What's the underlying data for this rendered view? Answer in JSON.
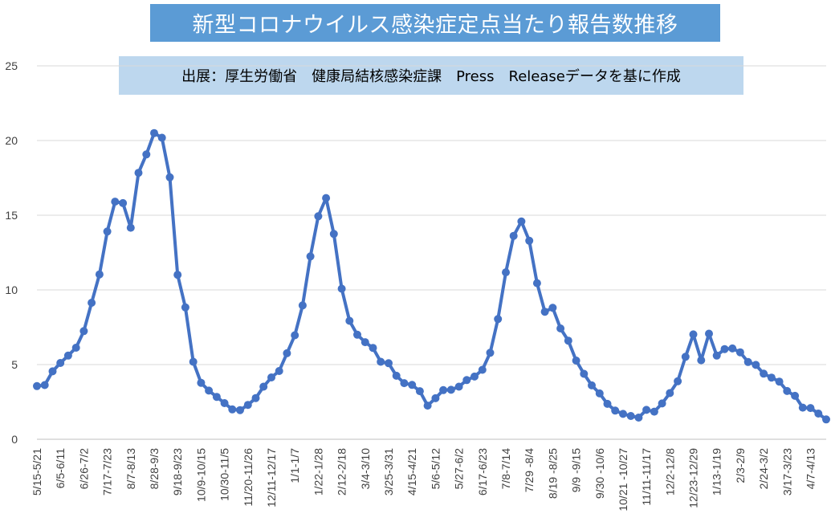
{
  "title": "新型コロナウイルス感染症定点当たり報告数推移",
  "source": "出展：厚生労働省　健康局結核感染症課　Press　Releaseデータを基に作成",
  "colors": {
    "line": "#4472c4",
    "title_bg": "#5b9bd5",
    "source_bg": "#bdd7ee",
    "grid": "#d9d9d9"
  },
  "chart_data": {
    "type": "line",
    "title": "新型コロナウイルス感染症定点当たり報告数推移",
    "xlabel": "",
    "ylabel": "",
    "ylim": [
      0,
      25
    ],
    "yticks": [
      0,
      5,
      10,
      15,
      20,
      25
    ],
    "grid": true,
    "legend": "none",
    "x_tick_labels": [
      "5/15-5/21",
      "6/5-6/11",
      "6/26-7/2",
      "7/17-7/23",
      "8/7-8/13",
      "8/28-9/3",
      "9/18-9/23",
      "10/9-10/15",
      "10/30-11/5",
      "11/20-11/26",
      "12/11-12/17",
      "1/1-1/7",
      "1/22-1/28",
      "2/12-2/18",
      "3/4-3/10",
      "3/25-3/31",
      "4/15-4/21",
      "5/6-5/12",
      "5/27-6/2",
      "6/17-6/23",
      "7/8-7/14",
      "7/29 -8/4",
      "8/19 -8/25",
      "9/9 -9/15",
      "9/30 -10/6",
      "10/21 -10/27",
      "11/11-11/17",
      "12/2-12/8",
      "12/23-12/29",
      "1/13-1/19",
      "2/3-2/9",
      "2/24-3/2",
      "3/17-3/23",
      "4/7-4/13"
    ],
    "series": [
      {
        "values": [
          3.56,
          3.63,
          4.55,
          5.11,
          5.6,
          6.13,
          7.24,
          9.14,
          11.04,
          13.91,
          15.91,
          15.81,
          14.16,
          17.84,
          19.07,
          20.5,
          20.19,
          17.54,
          11.01,
          8.83,
          5.19,
          3.78,
          3.26,
          2.84,
          2.42,
          2.0,
          1.95,
          2.3,
          2.76,
          3.52,
          4.14,
          4.57,
          5.76,
          6.96,
          8.96,
          12.24,
          14.93,
          16.15,
          13.75,
          10.08,
          7.93,
          7.0,
          6.5,
          6.12,
          5.19,
          5.09,
          4.25,
          3.76,
          3.64,
          3.22,
          2.25,
          2.75,
          3.29,
          3.31,
          3.52,
          3.96,
          4.2,
          4.65,
          5.79,
          8.05,
          11.18,
          13.62,
          14.58,
          13.29,
          10.45,
          8.54,
          8.8,
          7.42,
          6.6,
          5.27,
          4.38,
          3.61,
          3.07,
          2.37,
          1.92,
          1.7,
          1.56,
          1.45,
          1.97,
          1.85,
          2.4,
          3.09,
          3.88,
          5.52,
          7.02,
          5.29,
          7.07,
          5.6,
          6.04,
          6.08,
          5.82,
          5.17,
          4.98,
          4.39,
          4.13,
          3.86,
          3.23,
          2.91,
          2.12,
          2.09,
          1.72,
          1.33
        ]
      }
    ]
  }
}
